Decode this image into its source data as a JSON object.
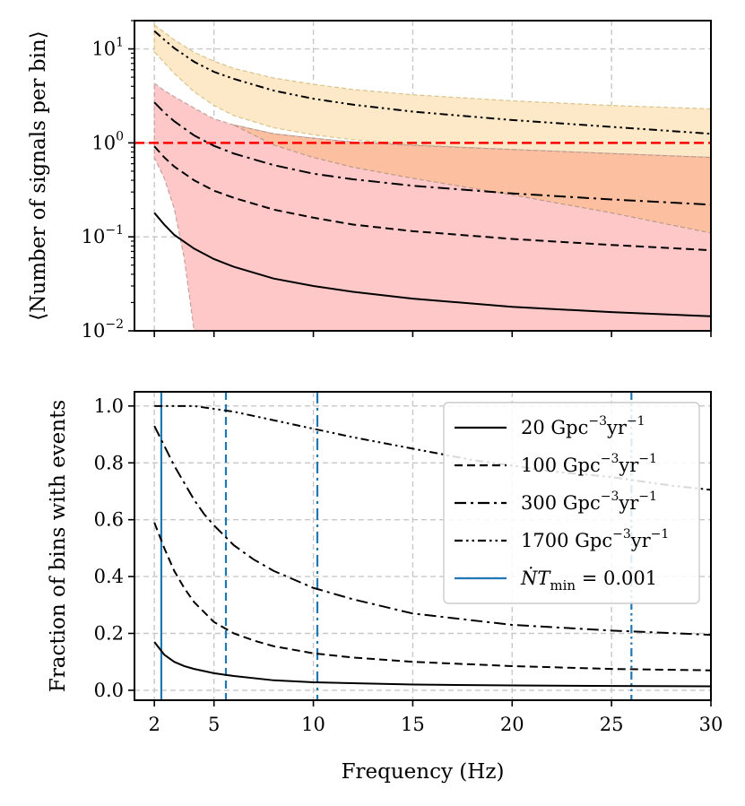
{
  "chart_data": [
    {
      "type": "line",
      "yscale": "log",
      "xlim": [
        1,
        30
      ],
      "ylim": [
        0.01,
        20
      ],
      "ylabel": "⟨Number of signals per bin⟩",
      "xlabel": "",
      "grid": true,
      "y_ticks": [
        {
          "value": 10,
          "base": "10",
          "exp": "1"
        },
        {
          "value": 1,
          "base": "10",
          "exp": "0"
        },
        {
          "value": 0.1,
          "base": "10",
          "exp": "−1"
        },
        {
          "value": 0.01,
          "base": "10",
          "exp": "−2"
        }
      ],
      "x_ticks": [
        2,
        5,
        10,
        15,
        20,
        25,
        30
      ],
      "reference_line": {
        "y": 1.0,
        "color": "#ff0000",
        "style": "dashed"
      },
      "bands": [
        {
          "name": "1700 band",
          "fill": "#fde9c8",
          "edge": "#d8c48a",
          "x": [
            2,
            3,
            4,
            5,
            6,
            8,
            10,
            12,
            15,
            20,
            25,
            30
          ],
          "upper": [
            18,
            12.5,
            9.2,
            7.4,
            6.2,
            4.9,
            4.2,
            3.7,
            3.25,
            2.8,
            2.5,
            2.3
          ],
          "lower": [
            9.3,
            5.5,
            3.5,
            2.5,
            1.95,
            1.45,
            1.22,
            1.08,
            0.96,
            0.84,
            0.76,
            0.7
          ]
        },
        {
          "name": "300 band",
          "fill": "#ffc8c8",
          "edge": "#c8a0a0",
          "x": [
            2,
            2.5,
            3,
            3.5,
            4,
            4.5,
            5,
            6,
            8,
            10,
            12,
            15,
            20,
            25,
            30
          ],
          "upper": [
            4.3,
            3.6,
            3.1,
            2.7,
            2.35,
            2.05,
            1.8,
            1.55,
            1.25,
            1.12,
            1.02,
            0.94,
            0.85,
            0.77,
            0.7
          ],
          "lower": [
            0.7,
            0.42,
            0.2,
            0.06,
            0.01,
            0.01,
            0.01,
            0.01,
            0.01,
            0.01,
            0.01,
            0.01,
            0.01,
            0.01,
            0.01
          ]
        },
        {
          "name": "300 upper-lower overlap",
          "fill": "#fcc0a0",
          "edge": "#b89a8a",
          "x": [
            6,
            8,
            10,
            12,
            15,
            20,
            25,
            30
          ],
          "upper": [
            1.55,
            1.25,
            1.12,
            1.02,
            0.94,
            0.85,
            0.77,
            0.7
          ],
          "lower": [
            1.55,
            0.95,
            0.7,
            0.55,
            0.42,
            0.28,
            0.18,
            0.11
          ]
        }
      ],
      "series": [
        {
          "name": "1700",
          "style": "dashdotdot",
          "x": [
            2,
            2.5,
            3,
            4,
            5,
            6,
            8,
            10,
            12,
            15,
            20,
            25,
            30
          ],
          "y": [
            15.5,
            12.5,
            10.2,
            7.3,
            5.7,
            4.8,
            3.6,
            2.95,
            2.55,
            2.15,
            1.75,
            1.48,
            1.25
          ]
        },
        {
          "name": "300",
          "style": "dashdot",
          "x": [
            2,
            2.5,
            3,
            4,
            5,
            6,
            8,
            10,
            12,
            15,
            20,
            25,
            30
          ],
          "y": [
            2.7,
            2.1,
            1.7,
            1.2,
            0.93,
            0.77,
            0.58,
            0.47,
            0.41,
            0.35,
            0.29,
            0.25,
            0.22
          ]
        },
        {
          "name": "100",
          "style": "dashed",
          "x": [
            2,
            2.5,
            3,
            4,
            5,
            6,
            8,
            10,
            12,
            15,
            20,
            25,
            30
          ],
          "y": [
            0.92,
            0.7,
            0.56,
            0.4,
            0.31,
            0.26,
            0.195,
            0.16,
            0.135,
            0.115,
            0.095,
            0.082,
            0.072
          ]
        },
        {
          "name": "20",
          "style": "solid",
          "x": [
            2,
            2.5,
            3,
            4,
            5,
            6,
            8,
            10,
            12,
            15,
            20,
            25,
            30
          ],
          "y": [
            0.18,
            0.135,
            0.105,
            0.075,
            0.058,
            0.048,
            0.036,
            0.03,
            0.026,
            0.022,
            0.018,
            0.0158,
            0.0143
          ]
        }
      ]
    },
    {
      "type": "line",
      "xlim": [
        1,
        30
      ],
      "ylim": [
        -0.035,
        1.05
      ],
      "xlabel": "Frequency (Hz)",
      "ylabel": "Fraction of bins with events",
      "grid": true,
      "x_ticks": [
        2,
        5,
        10,
        15,
        20,
        25,
        30
      ],
      "y_ticks": [
        "0.0",
        "0.2",
        "0.4",
        "0.6",
        "0.8",
        "1.0"
      ],
      "vlines": [
        {
          "x": 2.35,
          "style": "solid"
        },
        {
          "x": 5.6,
          "style": "dashed"
        },
        {
          "x": 10.2,
          "style": "dashdot"
        },
        {
          "x": 26,
          "style": "dashdotdot"
        }
      ],
      "series": [
        {
          "name": "1700",
          "style": "dashdotdot",
          "x": [
            2,
            3,
            4,
            5,
            6,
            8,
            10,
            12,
            15,
            18,
            20,
            22,
            25,
            28,
            30
          ],
          "y": [
            1.0,
            1.0,
            1.0,
            0.99,
            0.98,
            0.95,
            0.92,
            0.89,
            0.85,
            0.81,
            0.79,
            0.77,
            0.75,
            0.72,
            0.705
          ]
        },
        {
          "name": "300",
          "style": "dashdot",
          "x": [
            2,
            2.5,
            3,
            3.5,
            4,
            4.5,
            5,
            6,
            7,
            8,
            10,
            12,
            15,
            20,
            25,
            30
          ],
          "y": [
            0.93,
            0.86,
            0.79,
            0.73,
            0.67,
            0.62,
            0.58,
            0.51,
            0.46,
            0.42,
            0.36,
            0.32,
            0.27,
            0.23,
            0.21,
            0.195
          ]
        },
        {
          "name": "100",
          "style": "dashed",
          "x": [
            2,
            2.5,
            3,
            3.5,
            4,
            5,
            6,
            7,
            8,
            10,
            12,
            15,
            20,
            25,
            30
          ],
          "y": [
            0.59,
            0.5,
            0.42,
            0.36,
            0.31,
            0.24,
            0.2,
            0.175,
            0.155,
            0.13,
            0.115,
            0.1,
            0.085,
            0.075,
            0.07
          ]
        },
        {
          "name": "20",
          "style": "solid",
          "x": [
            2,
            2.5,
            3,
            3.5,
            4,
            5,
            6,
            8,
            10,
            15,
            20,
            25,
            30
          ],
          "y": [
            0.17,
            0.125,
            0.1,
            0.085,
            0.075,
            0.06,
            0.05,
            0.035,
            0.028,
            0.02,
            0.017,
            0.015,
            0.014
          ]
        }
      ],
      "legend": {
        "position": "top-right",
        "entries": [
          {
            "style": "solid",
            "value": "20",
            "unit": "Gpc",
            "e1": "−3",
            "unit2": "yr",
            "e2": "−1"
          },
          {
            "style": "dashed",
            "value": "100",
            "unit": "Gpc",
            "e1": "−3",
            "unit2": "yr",
            "e2": "−1"
          },
          {
            "style": "dashdot",
            "value": "300",
            "unit": "Gpc",
            "e1": "−3",
            "unit2": "yr",
            "e2": "−1"
          },
          {
            "style": "dashdotdot",
            "value": "1700",
            "unit": "Gpc",
            "e1": "−3",
            "unit2": "yr",
            "e2": "−1"
          },
          {
            "style": "blue",
            "math_main": "ṄT",
            "math_sub": "min",
            "math_rest": " = 0.001"
          }
        ]
      }
    }
  ],
  "colors": {
    "blue": "#1f77b4",
    "red": "#ff0000",
    "grid": "#c8c8c8",
    "ink": "#000000"
  }
}
